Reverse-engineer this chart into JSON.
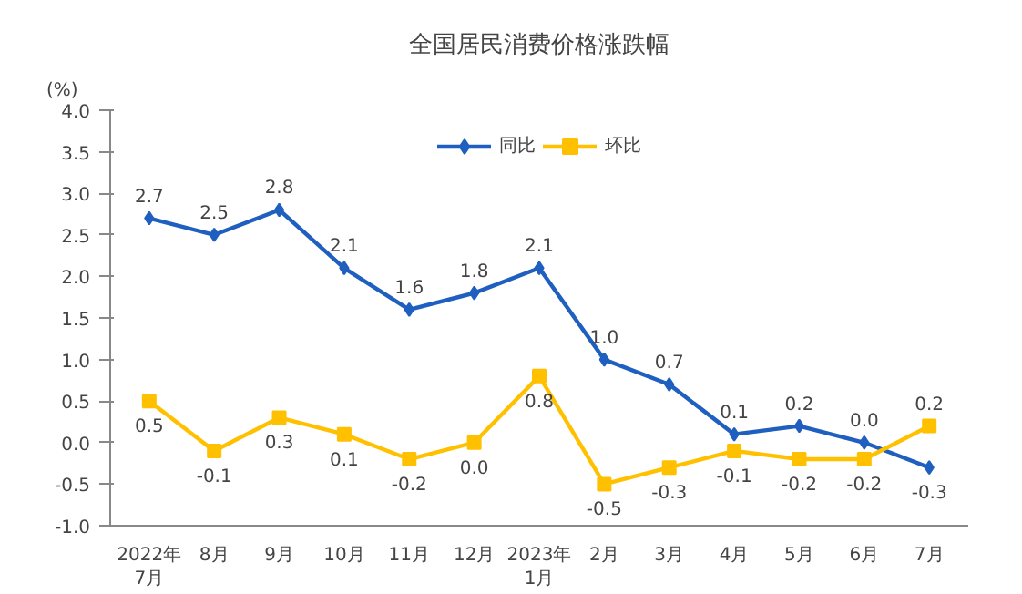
{
  "chart_data": {
    "type": "line",
    "title": "全国居民消费价格涨跌幅",
    "ylabel": "(%)",
    "categories": [
      "2022年\n7月",
      "8月",
      "9月",
      "10月",
      "11月",
      "12月",
      "2023年\n1月",
      "2月",
      "3月",
      "4月",
      "5月",
      "6月",
      "7月"
    ],
    "series": [
      {
        "name": "同比",
        "color": "#1f5fbf",
        "marker": "diamond",
        "values": [
          2.7,
          2.5,
          2.8,
          2.1,
          1.6,
          1.8,
          2.1,
          1.0,
          0.7,
          0.1,
          0.2,
          0.0,
          -0.3
        ],
        "value_labels": [
          "2.7",
          "2.5",
          "2.8",
          "2.1",
          "1.6",
          "1.8",
          "2.1",
          "1.0",
          "0.7",
          "0.1",
          "0.2",
          "0.0",
          "-0.3"
        ]
      },
      {
        "name": "环比",
        "color": "#ffc000",
        "marker": "square",
        "values": [
          0.5,
          -0.1,
          0.3,
          0.1,
          -0.2,
          0.0,
          0.8,
          -0.5,
          -0.3,
          -0.1,
          -0.2,
          -0.2,
          0.2
        ],
        "value_labels": [
          "0.5",
          "-0.1",
          "0.3",
          "0.1",
          "-0.2",
          "0.0",
          "0.8",
          "-0.5",
          "-0.3",
          "-0.1",
          "-0.2",
          "-0.2",
          "0.2"
        ]
      }
    ],
    "ylim": [
      -1,
      4
    ],
    "yticks": [
      {
        "value": -1,
        "label": "-1.0"
      },
      {
        "value": -0.5,
        "label": "-0.5"
      },
      {
        "value": 0,
        "label": "0.0"
      },
      {
        "value": 0.5,
        "label": "0.5"
      },
      {
        "value": 1,
        "label": "1.0"
      },
      {
        "value": 1.5,
        "label": "1.5"
      },
      {
        "value": 2,
        "label": "2.0"
      },
      {
        "value": 2.5,
        "label": "2.5"
      },
      {
        "value": 3,
        "label": "3.0"
      },
      {
        "value": 3.5,
        "label": "3.5"
      },
      {
        "value": 4,
        "label": "4.0"
      }
    ],
    "legend": "top",
    "grid": false,
    "line_style": "solid"
  }
}
